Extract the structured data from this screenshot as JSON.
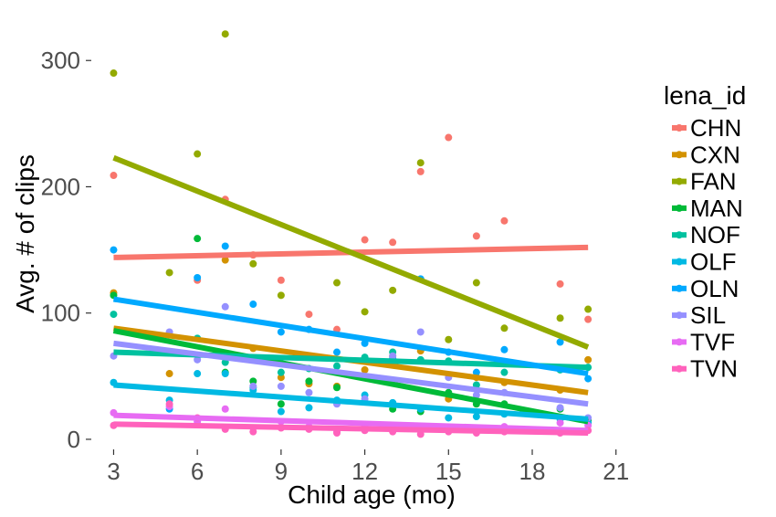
{
  "chart_data": {
    "type": "scatter",
    "xlabel": "Child age (mo)",
    "ylabel": "Avg. # of clips",
    "xlim": [
      2.2,
      21.5
    ],
    "ylim": [
      -8,
      332
    ],
    "xticks": [
      3,
      6,
      9,
      12,
      15,
      18,
      21
    ],
    "yticks": [
      0,
      100,
      200,
      300
    ],
    "grid": false,
    "legend": {
      "title": "lena_id",
      "placement": "right"
    },
    "series": [
      {
        "name": "CHN",
        "color": "#F8766D",
        "points": [
          [
            3,
            209
          ],
          [
            6,
            126
          ],
          [
            7,
            190
          ],
          [
            8,
            146
          ],
          [
            9,
            126
          ],
          [
            10,
            99
          ],
          [
            11,
            87
          ],
          [
            12,
            158
          ],
          [
            13,
            156
          ],
          [
            14,
            212
          ],
          [
            15,
            239
          ],
          [
            16,
            161
          ],
          [
            17,
            173
          ],
          [
            19,
            123
          ],
          [
            20,
            95
          ]
        ],
        "trend": [
          [
            3,
            144
          ],
          [
            20,
            152
          ]
        ]
      },
      {
        "name": "CXN",
        "color": "#D39200",
        "points": [
          [
            3,
            116
          ],
          [
            5,
            52
          ],
          [
            7,
            142
          ],
          [
            8,
            72
          ],
          [
            9,
            49
          ],
          [
            10,
            44
          ],
          [
            11,
            42
          ],
          [
            12,
            55
          ],
          [
            13,
            66
          ],
          [
            14,
            70
          ],
          [
            15,
            32
          ],
          [
            16,
            49
          ],
          [
            17,
            45
          ],
          [
            19,
            39
          ],
          [
            20,
            63
          ]
        ],
        "trend": [
          [
            3,
            88
          ],
          [
            20,
            37
          ]
        ]
      },
      {
        "name": "FAN",
        "color": "#93AA00",
        "points": [
          [
            3,
            290
          ],
          [
            5,
            132
          ],
          [
            6,
            226
          ],
          [
            7,
            321
          ],
          [
            8,
            139
          ],
          [
            9,
            114
          ],
          [
            11,
            124
          ],
          [
            12,
            101
          ],
          [
            13,
            118
          ],
          [
            14,
            219
          ],
          [
            15,
            79
          ],
          [
            16,
            124
          ],
          [
            17,
            88
          ],
          [
            19,
            96
          ],
          [
            20,
            103
          ]
        ],
        "trend": [
          [
            3,
            223
          ],
          [
            20,
            73
          ]
        ]
      },
      {
        "name": "MAN",
        "color": "#00BA38",
        "points": [
          [
            3,
            114
          ],
          [
            6,
            159
          ],
          [
            7,
            53
          ],
          [
            8,
            46
          ],
          [
            9,
            28
          ],
          [
            10,
            46
          ],
          [
            11,
            41
          ],
          [
            13,
            24
          ],
          [
            14,
            22
          ],
          [
            15,
            37
          ],
          [
            16,
            28
          ],
          [
            17,
            28
          ],
          [
            19,
            24
          ],
          [
            20,
            15
          ]
        ],
        "trend": [
          [
            3,
            86
          ],
          [
            20,
            14
          ]
        ]
      },
      {
        "name": "NOF",
        "color": "#00C19F",
        "points": [
          [
            3,
            99
          ],
          [
            5,
            69
          ],
          [
            6,
            80
          ],
          [
            7,
            61
          ],
          [
            8,
            41
          ],
          [
            9,
            53
          ],
          [
            10,
            56
          ],
          [
            11,
            58
          ],
          [
            12,
            65
          ],
          [
            13,
            69
          ],
          [
            14,
            63
          ],
          [
            15,
            62
          ],
          [
            16,
            43
          ],
          [
            17,
            53
          ],
          [
            19,
            55
          ],
          [
            20,
            57
          ]
        ],
        "trend": [
          [
            3,
            69
          ],
          [
            20,
            57
          ]
        ]
      },
      {
        "name": "OLF",
        "color": "#00B9E3",
        "points": [
          [
            3,
            45
          ],
          [
            5,
            31
          ],
          [
            6,
            52
          ],
          [
            7,
            52
          ],
          [
            8,
            39
          ],
          [
            9,
            22
          ],
          [
            10,
            25
          ],
          [
            11,
            31
          ],
          [
            12,
            35
          ],
          [
            13,
            29
          ],
          [
            14,
            24
          ],
          [
            15,
            17
          ],
          [
            16,
            18
          ],
          [
            17,
            20
          ],
          [
            19,
            16
          ],
          [
            20,
            13
          ]
        ],
        "trend": [
          [
            3,
            43
          ],
          [
            20,
            16
          ]
        ]
      },
      {
        "name": "OLN",
        "color": "#00A9FF",
        "points": [
          [
            3,
            150
          ],
          [
            5,
            24
          ],
          [
            6,
            128
          ],
          [
            7,
            153
          ],
          [
            8,
            107
          ],
          [
            9,
            85
          ],
          [
            10,
            87
          ],
          [
            11,
            69
          ],
          [
            12,
            76
          ],
          [
            13,
            64
          ],
          [
            14,
            127
          ],
          [
            15,
            69
          ],
          [
            16,
            53
          ],
          [
            17,
            71
          ],
          [
            19,
            77
          ],
          [
            20,
            48
          ]
        ],
        "trend": [
          [
            3,
            111
          ],
          [
            20,
            52
          ]
        ]
      },
      {
        "name": "SIL",
        "color": "#9590FF",
        "points": [
          [
            3,
            66
          ],
          [
            5,
            85
          ],
          [
            6,
            63
          ],
          [
            7,
            105
          ],
          [
            8,
            42
          ],
          [
            9,
            42
          ],
          [
            10,
            37
          ],
          [
            11,
            28
          ],
          [
            12,
            32
          ],
          [
            13,
            66
          ],
          [
            14,
            85
          ],
          [
            15,
            49
          ],
          [
            16,
            35
          ],
          [
            17,
            37
          ],
          [
            19,
            25
          ],
          [
            20,
            17
          ]
        ],
        "trend": [
          [
            3,
            76
          ],
          [
            20,
            28
          ]
        ]
      },
      {
        "name": "TVF",
        "color": "#E76BF3",
        "points": [
          [
            3,
            21
          ],
          [
            5,
            26
          ],
          [
            6,
            14
          ],
          [
            7,
            24
          ],
          [
            8,
            9
          ],
          [
            9,
            14
          ],
          [
            10,
            10
          ],
          [
            11,
            6
          ],
          [
            12,
            11
          ],
          [
            13,
            8
          ],
          [
            14,
            7
          ],
          [
            15,
            8
          ],
          [
            16,
            8
          ],
          [
            17,
            10
          ],
          [
            19,
            13
          ],
          [
            20,
            11
          ]
        ],
        "trend": [
          [
            3,
            19
          ],
          [
            20,
            7
          ]
        ]
      },
      {
        "name": "TVN",
        "color": "#FF62BC",
        "points": [
          [
            3,
            11
          ],
          [
            5,
            28
          ],
          [
            6,
            17
          ],
          [
            7,
            8
          ],
          [
            8,
            6
          ],
          [
            9,
            9
          ],
          [
            10,
            8
          ],
          [
            11,
            5
          ],
          [
            12,
            7
          ],
          [
            13,
            6
          ],
          [
            14,
            4
          ],
          [
            15,
            6
          ],
          [
            16,
            5
          ],
          [
            17,
            6
          ],
          [
            19,
            5
          ],
          [
            20,
            7
          ]
        ],
        "trend": [
          [
            3,
            12
          ],
          [
            20,
            5
          ]
        ]
      }
    ]
  }
}
